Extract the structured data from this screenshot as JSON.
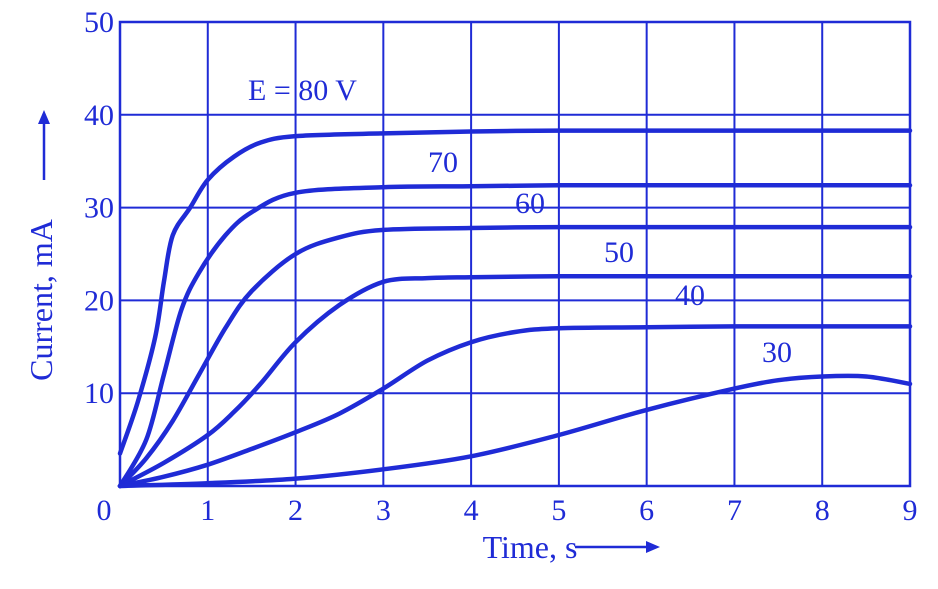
{
  "chart_data": {
    "type": "line",
    "xlabel": "Time, s",
    "ylabel": "Current, mA",
    "xlim": [
      0,
      9
    ],
    "ylim": [
      0,
      50
    ],
    "x_ticks": [
      "0",
      "1",
      "2",
      "3",
      "4",
      "5",
      "6",
      "7",
      "8",
      "9"
    ],
    "y_ticks": [
      "10",
      "20",
      "30",
      "40",
      "50"
    ],
    "grid": true,
    "color": "#1f2bd6",
    "series": [
      {
        "name": "E = 80 V",
        "x": [
          0,
          0.2,
          0.4,
          0.5,
          0.6,
          0.8,
          1.0,
          1.3,
          1.6,
          2.0,
          3,
          4,
          5,
          6,
          7,
          8,
          9
        ],
        "y": [
          3.5,
          9,
          16,
          22,
          27,
          30,
          33,
          35.5,
          37,
          37.7,
          38,
          38.2,
          38.3,
          38.3,
          38.3,
          38.3,
          38.3
        ]
      },
      {
        "name": "70",
        "x": [
          0,
          0.3,
          0.5,
          0.7,
          0.9,
          1.2,
          1.5,
          2.0,
          3,
          4,
          5,
          6,
          7,
          8,
          9
        ],
        "y": [
          0,
          5,
          12,
          19,
          23,
          27,
          29.5,
          31.6,
          32.2,
          32.3,
          32.4,
          32.4,
          32.4,
          32.4,
          32.4
        ]
      },
      {
        "name": "60",
        "x": [
          0,
          0.3,
          0.6,
          0.9,
          1.2,
          1.5,
          2.0,
          2.5,
          3,
          4,
          5,
          6,
          7,
          8,
          9
        ],
        "y": [
          0,
          3,
          7,
          12,
          17,
          21,
          25,
          26.8,
          27.6,
          27.8,
          27.9,
          27.9,
          27.9,
          27.9,
          27.9
        ]
      },
      {
        "name": "50",
        "x": [
          0,
          0.5,
          1.0,
          1.3,
          1.6,
          2.0,
          2.5,
          3.0,
          3.5,
          4,
          5,
          6,
          7,
          8,
          9
        ],
        "y": [
          0,
          2.5,
          5.5,
          8,
          11,
          15.5,
          19.5,
          22,
          22.4,
          22.5,
          22.6,
          22.6,
          22.6,
          22.6,
          22.6
        ]
      },
      {
        "name": "40",
        "x": [
          0,
          0.5,
          1.0,
          1.5,
          2.0,
          2.5,
          3.0,
          3.5,
          4.0,
          4.5,
          5,
          6,
          7,
          8,
          9
        ],
        "y": [
          0,
          1,
          2.3,
          4,
          5.8,
          7.8,
          10.5,
          13.5,
          15.5,
          16.6,
          17,
          17.1,
          17.2,
          17.2,
          17.2
        ]
      },
      {
        "name": "30",
        "x": [
          0,
          1,
          2,
          3,
          4,
          5,
          6,
          7,
          7.5,
          8,
          8.5,
          9
        ],
        "y": [
          0,
          0.3,
          0.8,
          1.8,
          3.2,
          5.5,
          8.2,
          10.5,
          11.4,
          11.8,
          11.8,
          11
        ]
      }
    ]
  }
}
